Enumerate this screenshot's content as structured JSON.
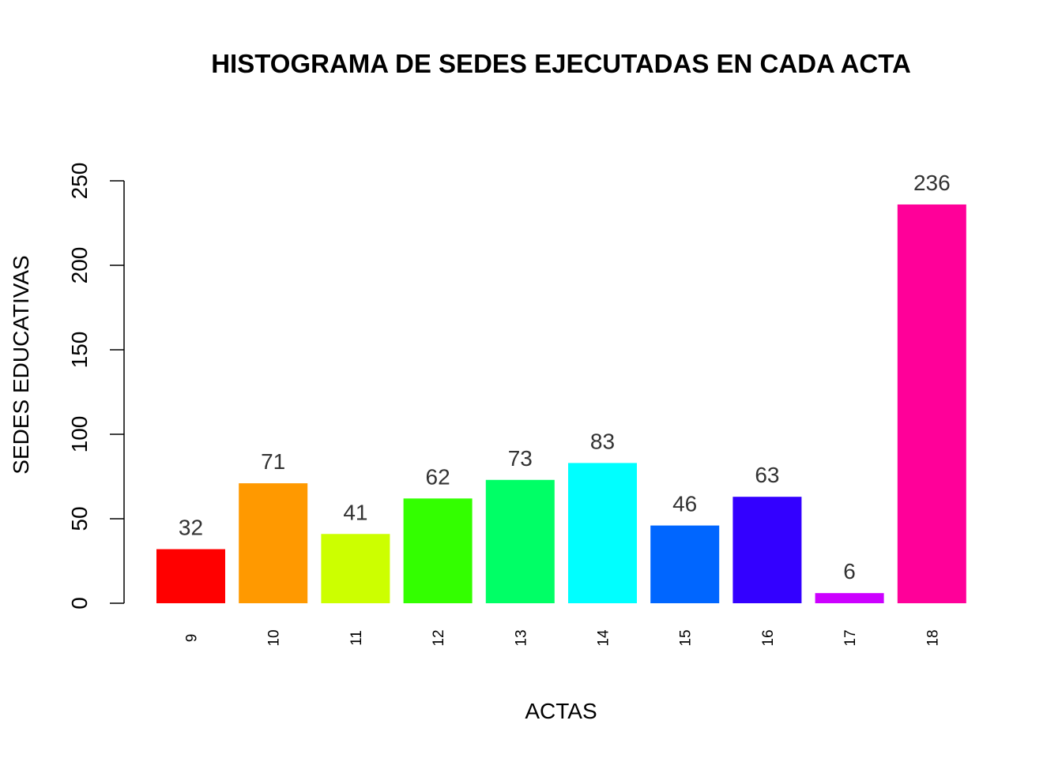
{
  "chart_data": {
    "type": "bar",
    "title": "HISTOGRAMA DE SEDES EJECUTADAS EN CADA ACTA",
    "xlabel": "ACTAS",
    "ylabel": "SEDES EDUCATIVAS",
    "categories": [
      "9",
      "10",
      "11",
      "12",
      "13",
      "14",
      "15",
      "16",
      "17",
      "18"
    ],
    "values": [
      32,
      71,
      41,
      62,
      73,
      83,
      46,
      63,
      6,
      236
    ],
    "data_labels": [
      "32",
      "71",
      "41",
      "62",
      "73",
      "83",
      "46",
      "63",
      "6",
      "236"
    ],
    "colors": [
      "#FF0000",
      "#FF9900",
      "#CCFF00",
      "#33FF00",
      "#00FF66",
      "#00FFFF",
      "#0066FF",
      "#3300FF",
      "#CC00FF",
      "#FF0099"
    ],
    "ylim": [
      0,
      250
    ],
    "yticks": [
      0,
      50,
      100,
      150,
      200,
      250
    ],
    "ytick_labels": [
      "0",
      "50",
      "100",
      "150",
      "200",
      "250"
    ],
    "grid": false,
    "legend": "none"
  }
}
